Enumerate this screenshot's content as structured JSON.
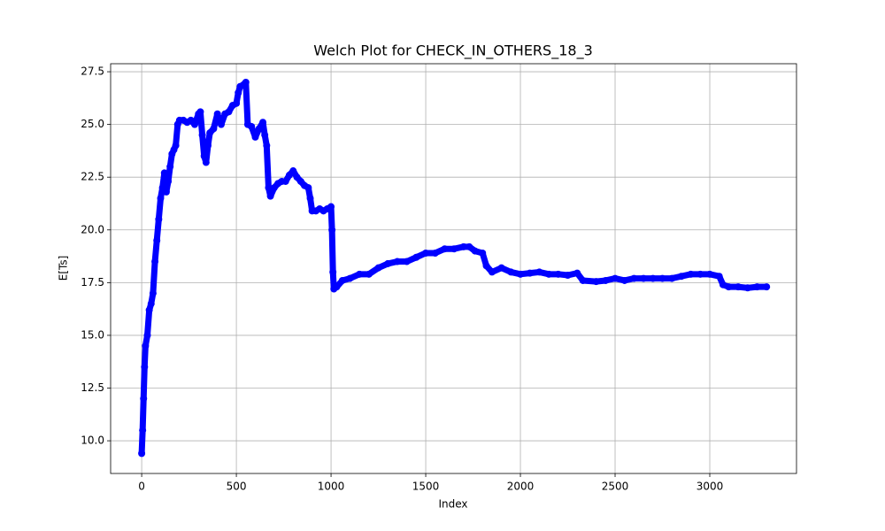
{
  "chart_data": {
    "type": "line",
    "title": "Welch Plot for CHECK_IN_OTHERS_18_3",
    "xlabel": "Index",
    "ylabel": "E[Ts]",
    "grid": true,
    "marker": "circle",
    "x": [
      0,
      5,
      10,
      15,
      20,
      30,
      40,
      50,
      60,
      70,
      80,
      90,
      100,
      110,
      120,
      130,
      140,
      150,
      160,
      170,
      180,
      190,
      200,
      220,
      240,
      260,
      280,
      300,
      310,
      320,
      330,
      340,
      350,
      360,
      380,
      400,
      420,
      440,
      460,
      480,
      500,
      510,
      520,
      540,
      550,
      560,
      580,
      600,
      620,
      640,
      650,
      660,
      670,
      680,
      700,
      720,
      740,
      760,
      780,
      800,
      820,
      840,
      860,
      880,
      890,
      900,
      920,
      940,
      960,
      980,
      1000,
      1005,
      1010,
      1015,
      1030,
      1060,
      1100,
      1150,
      1200,
      1250,
      1300,
      1350,
      1400,
      1450,
      1500,
      1550,
      1600,
      1650,
      1700,
      1730,
      1760,
      1800,
      1820,
      1850,
      1900,
      1950,
      2000,
      2050,
      2100,
      2150,
      2200,
      2250,
      2300,
      2330,
      2400,
      2450,
      2500,
      2550,
      2600,
      2650,
      2700,
      2750,
      2800,
      2850,
      2900,
      2950,
      3000,
      3050,
      3070,
      3100,
      3150,
      3200,
      3250,
      3300
    ],
    "series": [
      {
        "name": "E[Ts]",
        "color": "#0000ff",
        "values": [
          9.4,
          10.5,
          12,
          13.5,
          14.5,
          15,
          16.2,
          16.5,
          17,
          18.5,
          19.5,
          20.5,
          21.5,
          22,
          22.7,
          21.8,
          22.3,
          23,
          23.6,
          23.8,
          24,
          25,
          25.2,
          25.2,
          25.1,
          25.2,
          25,
          25.5,
          25.6,
          24.5,
          23.5,
          23.2,
          24,
          24.6,
          24.8,
          25.5,
          25,
          25.5,
          25.6,
          25.9,
          26,
          26.5,
          26.8,
          26.9,
          27,
          25,
          24.9,
          24.4,
          24.8,
          25.1,
          24.5,
          24,
          22,
          21.6,
          22,
          22.2,
          22.3,
          22.3,
          22.6,
          22.8,
          22.5,
          22.3,
          22.1,
          22,
          21.5,
          20.9,
          20.9,
          21,
          20.9,
          21,
          21.1,
          20,
          18,
          17.2,
          17.3,
          17.6,
          17.7,
          17.9,
          17.9,
          18.2,
          18.4,
          18.5,
          18.5,
          18.7,
          18.9,
          18.9,
          19.1,
          19.1,
          19.2,
          19.2,
          19,
          18.9,
          18.3,
          18,
          18.2,
          18,
          17.9,
          17.95,
          18,
          17.9,
          17.9,
          17.85,
          17.95,
          17.6,
          17.55,
          17.6,
          17.7,
          17.6,
          17.7,
          17.7,
          17.7,
          17.7,
          17.7,
          17.8,
          17.9,
          17.9,
          17.9,
          17.8,
          17.4,
          17.3,
          17.3,
          17.25,
          17.3,
          17.3
        ]
      }
    ],
    "xlim": [
      -164,
      3458
    ],
    "xticks": [
      0,
      500,
      1000,
      1500,
      2000,
      2500,
      3000
    ],
    "ylim": [
      8.45,
      27.88
    ],
    "yticks": [
      {
        "value": 10,
        "label": "10.0"
      },
      {
        "value": 12.5,
        "label": "12.5"
      },
      {
        "value": 15,
        "label": "15.0"
      },
      {
        "value": 17.5,
        "label": "17.5"
      },
      {
        "value": 20,
        "label": "20.0"
      },
      {
        "value": 22.5,
        "label": "22.5"
      },
      {
        "value": 25,
        "label": "25.0"
      },
      {
        "value": 27.5,
        "label": "27.5"
      }
    ]
  }
}
